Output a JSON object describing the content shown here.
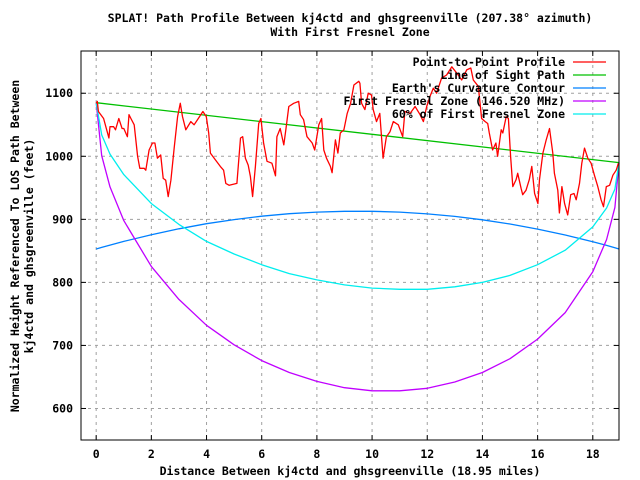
{
  "chart_data": {
    "type": "line",
    "title": "SPLAT! Path Profile Between kj4ctd and ghsgreenville (207.38° azimuth)",
    "subtitle": "With First Fresnel Zone",
    "xlabel": "Distance Between kj4ctd and ghsgreenville (18.95 miles)",
    "ylabel_lines": [
      "Normalized Height Referenced To LOS Path Between",
      "kj4ctd and ghsgreenville (feet)"
    ],
    "xlim": [
      -0.55,
      18.95
    ],
    "ylim": [
      550,
      1167
    ],
    "x_ticks": [
      0,
      2,
      4,
      6,
      8,
      10,
      12,
      14,
      16,
      18
    ],
    "x_tick_labels": [
      "0",
      "2",
      "4",
      "6",
      "8",
      "10",
      "12",
      "14",
      "16",
      "18"
    ],
    "y_ticks": [
      600,
      700,
      800,
      900,
      1000,
      1100
    ],
    "y_tick_labels": [
      "600",
      "700",
      "800",
      "900",
      "1000",
      "1100"
    ],
    "grid": true,
    "legend_position": "top-right",
    "series": [
      {
        "name": "Point-to-Point Profile",
        "color": "#ff0000",
        "x": [
          0,
          0.04,
          0.08,
          0.27,
          0.4,
          0.46,
          0.5,
          0.63,
          0.7,
          0.82,
          0.94,
          1.0,
          1.13,
          1.19,
          1.26,
          1.38,
          1.5,
          1.58,
          1.74,
          1.8,
          1.92,
          2.04,
          2.13,
          2.22,
          2.34,
          2.43,
          2.52,
          2.61,
          2.71,
          2.83,
          2.95,
          3.05,
          3.13,
          3.25,
          3.43,
          3.55,
          3.7,
          3.87,
          3.99,
          4.08,
          4.14,
          4.33,
          4.5,
          4.62,
          4.7,
          4.82,
          5.1,
          5.23,
          5.31,
          5.41,
          5.51,
          5.59,
          5.67,
          5.77,
          5.89,
          5.97,
          6.07,
          6.19,
          6.37,
          6.5,
          6.55,
          6.67,
          6.8,
          6.88,
          6.98,
          7.16,
          7.34,
          7.4,
          7.52,
          7.64,
          7.83,
          7.92,
          8.07,
          8.17,
          8.25,
          8.35,
          8.49,
          8.55,
          8.67,
          8.76,
          8.85,
          8.98,
          9.1,
          9.22,
          9.34,
          9.52,
          9.56,
          9.62,
          9.74,
          9.86,
          9.98,
          10.04,
          10.16,
          10.28,
          10.34,
          10.4,
          10.52,
          10.65,
          10.77,
          10.95,
          11.11,
          11.19,
          11.38,
          11.56,
          11.74,
          11.86,
          11.98,
          12.1,
          12.22,
          12.34,
          12.52,
          12.7,
          12.89,
          13.07,
          13.25,
          13.43,
          13.58,
          13.67,
          13.85,
          13.97,
          14.1,
          14.19,
          14.25,
          14.37,
          14.49,
          14.55,
          14.68,
          14.74,
          14.86,
          14.94,
          15.02,
          15.1,
          15.22,
          15.28,
          15.4,
          15.46,
          15.58,
          15.7,
          15.79,
          15.89,
          16.01,
          16.07,
          16.19,
          16.31,
          16.43,
          16.55,
          16.61,
          16.73,
          16.79,
          16.88,
          16.98,
          17.09,
          17.2,
          17.32,
          17.4,
          17.52,
          17.6,
          17.7,
          17.82,
          17.94,
          18.06,
          18.18,
          18.3,
          18.39,
          18.49,
          18.61,
          18.73,
          18.85,
          18.93
        ],
        "y": [
          1084,
          1087,
          1071,
          1060,
          1039,
          1029,
          1047,
          1047,
          1042,
          1060,
          1044,
          1044,
          1031,
          1066,
          1060,
          1050,
          1000,
          981,
          981,
          978,
          1010,
          1021,
          1021,
          997,
          1002,
          965,
          962,
          936,
          962,
          1015,
          1063,
          1084,
          1063,
          1042,
          1055,
          1050,
          1060,
          1071,
          1063,
          1037,
          1005,
          994,
          984,
          978,
          957,
          954,
          957,
          1029,
          1031,
          997,
          986,
          968,
          936,
          984,
          1052,
          1060,
          1021,
          992,
          989,
          969,
          1031,
          1044,
          1018,
          1044,
          1079,
          1084,
          1087,
          1066,
          1058,
          1031,
          1021,
          1010,
          1050,
          1060,
          1010,
          997,
          984,
          974,
          1026,
          1005,
          1037,
          1042,
          1068,
          1084,
          1113,
          1119,
          1116,
          1084,
          1074,
          1100,
          1097,
          1074,
          1055,
          1068,
          1031,
          997,
          1031,
          1039,
          1055,
          1050,
          1031,
          1071,
          1068,
          1079,
          1066,
          1055,
          1079,
          1095,
          1108,
          1100,
          1124,
          1129,
          1142,
          1132,
          1121,
          1137,
          1140,
          1121,
          1111,
          1060,
          1055,
          1052,
          1037,
          1010,
          1021,
          1000,
          1042,
          1037,
          1063,
          1060,
          1000,
          952,
          963,
          973,
          949,
          939,
          946,
          963,
          984,
          941,
          925,
          963,
          1005,
          1026,
          1044,
          1005,
          973,
          946,
          910,
          952,
          925,
          907,
          939,
          941,
          931,
          957,
          989,
          1013,
          997,
          989,
          970,
          952,
          931,
          920,
          952,
          954,
          970,
          978,
          989
        ]
      },
      {
        "name": "Line of Sight Path",
        "color": "#00c000",
        "x": [
          0,
          18.95
        ],
        "y": [
          1085,
          990
        ]
      },
      {
        "name": "Earth's Curvature Contour",
        "color": "#0080ff",
        "x": [
          0,
          0.2,
          0.5,
          1,
          2,
          3,
          4,
          5,
          6,
          7,
          8,
          9,
          10,
          11,
          12,
          13,
          14,
          15,
          16,
          17,
          18,
          18.5,
          18.8,
          18.95
        ],
        "y": [
          853,
          855.5,
          859.2,
          865,
          875.7,
          885,
          893,
          899.6,
          904.9,
          908.9,
          911.5,
          912.8,
          912.8,
          911.4,
          908.7,
          904.7,
          899.3,
          892.6,
          884.5,
          875.2,
          864.4,
          858.6,
          854.9,
          853
        ]
      },
      {
        "name": "First Fresnel Zone (146.520 MHz)",
        "color": "#c000ff",
        "x": [
          0,
          0.2,
          0.5,
          1,
          2,
          3,
          4,
          5,
          6,
          7,
          8,
          9,
          10,
          11,
          12,
          13,
          14,
          15,
          16,
          17,
          18,
          18.5,
          18.8,
          18.95
        ],
        "y": [
          1085,
          1001,
          951.5,
          898,
          825,
          773,
          732,
          701,
          676,
          657,
          643,
          633,
          628,
          628,
          632,
          642,
          657,
          679,
          710,
          752,
          817,
          868,
          919,
          990
        ]
      },
      {
        "name": "60% of First Fresnel Zone",
        "color": "#00eeee",
        "x": [
          0,
          0.2,
          0.5,
          1,
          2,
          3,
          4,
          5,
          6,
          7,
          8,
          9,
          10,
          11,
          12,
          13,
          14,
          15,
          16,
          17,
          18,
          18.5,
          18.8,
          18.95
        ],
        "y": [
          1085,
          1034,
          1003.5,
          971,
          925,
          892,
          865,
          845,
          828,
          814,
          804,
          796,
          791,
          789,
          789,
          793,
          800,
          811,
          828,
          851,
          888,
          918,
          948,
          990
        ]
      }
    ]
  }
}
